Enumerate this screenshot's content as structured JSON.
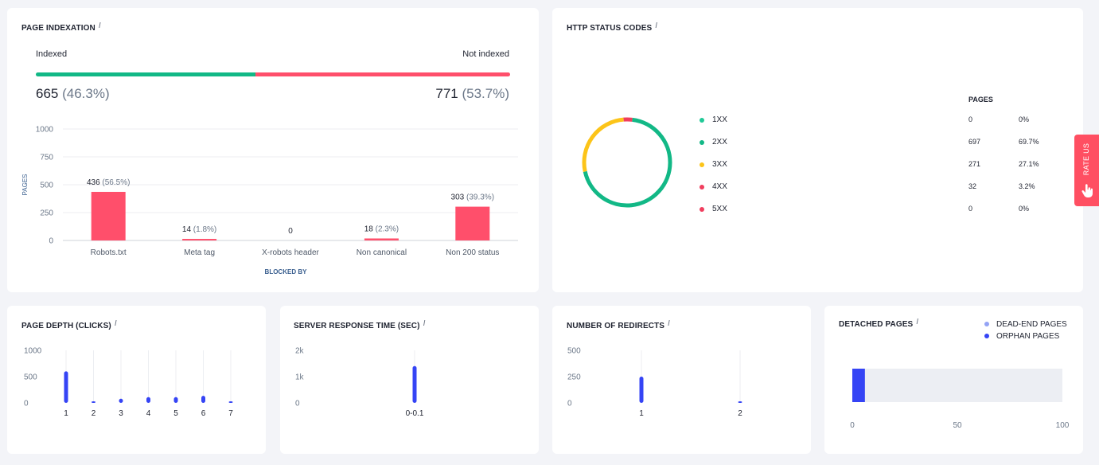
{
  "indexation": {
    "title": "PAGE INDEXATION",
    "info": "i",
    "indexed_label": "Indexed",
    "not_indexed_label": "Not indexed",
    "indexed_count": "665",
    "indexed_pct": "(46.3%)",
    "not_indexed_count": "771",
    "not_indexed_pct": "(53.7%)",
    "indexed_fraction": 0.463,
    "colors": {
      "indexed": "#12b886",
      "not_indexed": "#ff4f6b"
    }
  },
  "blocked_chart": {
    "type": "bar",
    "ylabel": "PAGES",
    "xlabel": "BLOCKED BY",
    "yticks": [
      "0",
      "250",
      "500",
      "750",
      "1000"
    ],
    "ylim": [
      0,
      1000
    ],
    "categories": [
      "Robots.txt",
      "Meta tag",
      "X-robots header",
      "Non canonical",
      "Non 200 status"
    ],
    "values": [
      436,
      14,
      0,
      18,
      303
    ],
    "value_labels": [
      "436",
      "14",
      "0",
      "18",
      "303"
    ],
    "pct_labels": [
      "(56.5%)",
      "(1.8%)",
      "",
      "(2.3%)",
      "(39.3%)"
    ],
    "color": "#ff4f6b"
  },
  "http_status": {
    "title": "HTTP STATUS CODES",
    "info": "i",
    "pages_header": "PAGES",
    "rows": [
      {
        "code": "1XX",
        "pages": "0",
        "pct": "0%",
        "value": 0,
        "color": "#20c997"
      },
      {
        "code": "2XX",
        "pages": "697",
        "pct": "69.7%",
        "value": 697,
        "color": "#12b886"
      },
      {
        "code": "3XX",
        "pages": "271",
        "pct": "27.1%",
        "value": 271,
        "color": "#fcc419"
      },
      {
        "code": "4XX",
        "pages": "32",
        "pct": "3.2%",
        "value": 32,
        "color": "#f03e5e"
      },
      {
        "code": "5XX",
        "pages": "0",
        "pct": "0%",
        "value": 0,
        "color": "#f03e5e"
      }
    ]
  },
  "rate_us": {
    "label": "RATE US"
  },
  "depth": {
    "title": "PAGE DEPTH (CLICKS)",
    "info": "i",
    "yticks": [
      "0",
      "500",
      "1000"
    ],
    "ylim": [
      0,
      1000
    ],
    "categories": [
      "1",
      "2",
      "3",
      "4",
      "5",
      "6",
      "7"
    ],
    "values": [
      600,
      25,
      80,
      110,
      110,
      135,
      30
    ],
    "color": "#3544f5"
  },
  "server": {
    "title": "SERVER RESPONSE TIME (SEC)",
    "info": "i",
    "yticks": [
      "0",
      "1k",
      "2k"
    ],
    "ylim": [
      0,
      2000
    ],
    "categories": [
      "0-0.1"
    ],
    "values": [
      1400
    ],
    "color": "#3544f5"
  },
  "redirects": {
    "title": "NUMBER OF REDIRECTS",
    "info": "i",
    "yticks": [
      "0",
      "250",
      "500"
    ],
    "ylim": [
      0,
      500
    ],
    "categories": [
      "1",
      "2"
    ],
    "values": [
      250,
      5
    ],
    "color": "#3544f5"
  },
  "detached": {
    "title": "DETACHED PAGES",
    "info": "i",
    "legend": [
      {
        "label": "DEAD-END PAGES",
        "color": "#94a3f5"
      },
      {
        "label": "ORPHAN PAGES",
        "color": "#3544f5"
      }
    ],
    "xticks": [
      "0",
      "50",
      "100"
    ],
    "xlim": [
      0,
      100
    ],
    "orphan_value": 6,
    "track_color": "#eceef3"
  },
  "chart_data": [
    {
      "type": "bar",
      "title": "",
      "xlabel": "BLOCKED BY",
      "ylabel": "PAGES",
      "categories": [
        "Robots.txt",
        "Meta tag",
        "X-robots header",
        "Non canonical",
        "Non 200 status"
      ],
      "values": [
        436,
        14,
        0,
        18,
        303
      ],
      "ylim": [
        0,
        1000
      ],
      "grid": true
    },
    {
      "type": "pie",
      "title": "HTTP STATUS CODES",
      "categories": [
        "1XX",
        "2XX",
        "3XX",
        "4XX",
        "5XX"
      ],
      "values": [
        0,
        697,
        271,
        32,
        0
      ]
    },
    {
      "type": "bar",
      "title": "PAGE DEPTH (CLICKS)",
      "categories": [
        "1",
        "2",
        "3",
        "4",
        "5",
        "6",
        "7"
      ],
      "values": [
        600,
        25,
        80,
        110,
        110,
        135,
        30
      ],
      "ylim": [
        0,
        1000
      ]
    },
    {
      "type": "bar",
      "title": "SERVER RESPONSE TIME (SEC)",
      "categories": [
        "0-0.1"
      ],
      "values": [
        1400
      ],
      "ylim": [
        0,
        2000
      ]
    },
    {
      "type": "bar",
      "title": "NUMBER OF REDIRECTS",
      "categories": [
        "1",
        "2"
      ],
      "values": [
        250,
        5
      ],
      "ylim": [
        0,
        500
      ]
    },
    {
      "type": "bar",
      "title": "DETACHED PAGES",
      "categories": [
        "ORPHAN PAGES"
      ],
      "values": [
        6
      ],
      "xlim": [
        0,
        100
      ],
      "legend": [
        "DEAD-END PAGES",
        "ORPHAN PAGES"
      ]
    }
  ]
}
